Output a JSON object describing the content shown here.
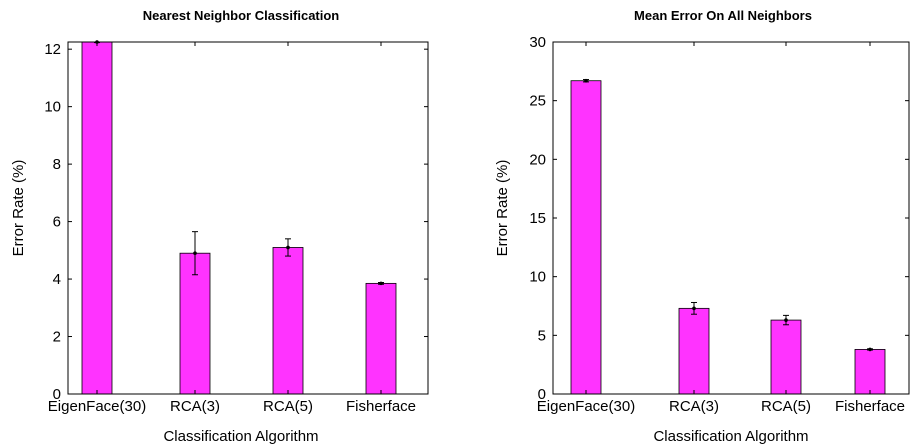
{
  "chart_data": [
    {
      "type": "bar",
      "title": "Nearest Neighbor Classification",
      "xlabel": "Classification Algorithm",
      "ylabel": "Error Rate (%)",
      "categories": [
        "EigenFace(30)",
        "RCA(3)",
        "RCA(5)",
        "Fisherface"
      ],
      "values": [
        12.25,
        4.9,
        5.1,
        3.85
      ],
      "errors": [
        0.02,
        0.75,
        0.3,
        0.03
      ],
      "ylim": [
        0,
        12.25
      ],
      "yticks": [
        0,
        2,
        4,
        6,
        8,
        10,
        12
      ],
      "ytick_labels": [
        "0",
        "2",
        "4",
        "6",
        "8",
        "10",
        "12"
      ],
      "bar_color": "#ff33ff",
      "grid": false
    },
    {
      "type": "bar",
      "title": "Mean Error On All Neighbors",
      "xlabel": "Classification Algorithm",
      "ylabel": "Error Rate (%)",
      "categories": [
        "EigenFace(30)",
        "RCA(3)",
        "RCA(5)",
        "Fisherface"
      ],
      "values": [
        26.7,
        7.3,
        6.3,
        3.8
      ],
      "errors": [
        0.1,
        0.5,
        0.4,
        0.05
      ],
      "ylim": [
        0,
        30
      ],
      "yticks": [
        0,
        5,
        10,
        15,
        20,
        25,
        30
      ],
      "ytick_labels": [
        "0",
        "5",
        "10",
        "15",
        "20",
        "25",
        "30"
      ],
      "bar_color": "#ff33ff",
      "grid": false
    }
  ]
}
